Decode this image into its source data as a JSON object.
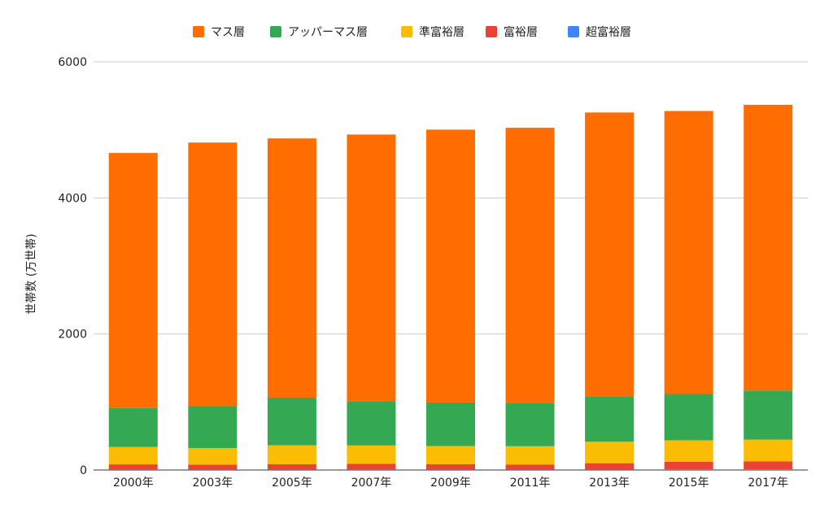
{
  "chart_data": {
    "type": "bar",
    "stacked": true,
    "title": "",
    "xlabel": "",
    "ylabel": "世帯数 (万世帯)",
    "ylim": [
      0,
      6000
    ],
    "yticks": [
      0,
      2000,
      4000,
      6000
    ],
    "grid": true,
    "legend_position": "top",
    "categories": [
      "2000年",
      "2003年",
      "2005年",
      "2007年",
      "2009年",
      "2011年",
      "2013年",
      "2015年",
      "2017年"
    ],
    "series": [
      {
        "name": "超富裕層",
        "color": "#4285f4",
        "values": [
          6,
          6,
          5,
          6,
          5,
          5,
          5,
          7,
          8
        ]
      },
      {
        "name": "富裕層",
        "color": "#ea4335",
        "values": [
          77,
          72,
          79,
          84,
          79,
          76,
          95,
          115,
          118
        ]
      },
      {
        "name": "準富裕層",
        "color": "#fbbc04",
        "values": [
          257,
          245,
          280,
          271,
          269,
          269,
          315,
          315,
          322
        ]
      },
      {
        "name": "アッパーマス層",
        "color": "#34a853",
        "values": [
          570,
          620,
          700,
          650,
          640,
          640,
          670,
          680,
          720
        ]
      },
      {
        "name": "マス層",
        "color": "#ff6d01",
        "values": [
          3750,
          3870,
          3810,
          3920,
          4010,
          4040,
          4170,
          4160,
          4200
        ]
      }
    ],
    "legend_order": [
      "マス層",
      "アッパーマス層",
      "準富裕層",
      "富裕層",
      "超富裕層"
    ]
  }
}
